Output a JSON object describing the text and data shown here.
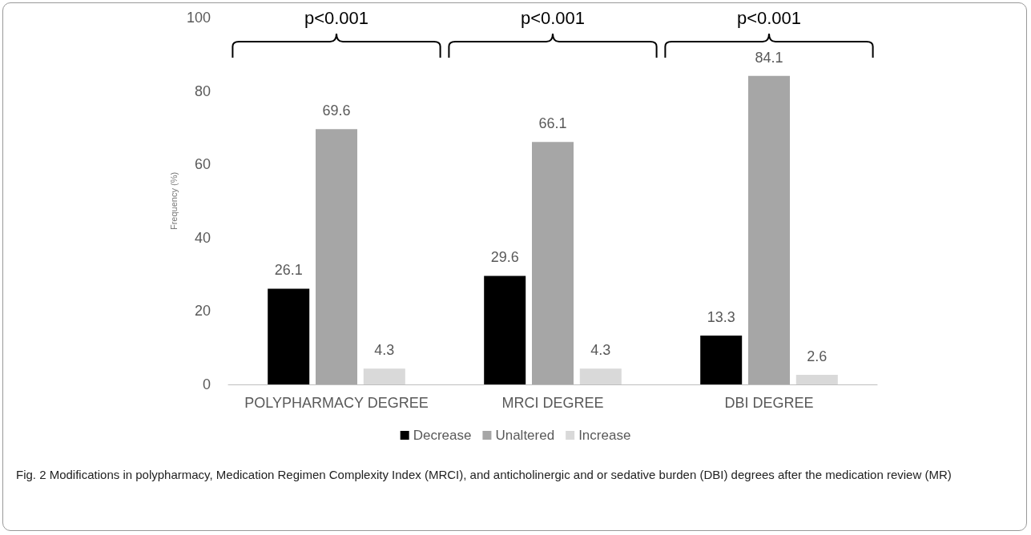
{
  "chart_data": {
    "type": "bar",
    "categories": [
      "POLYPHARMACY DEGREE",
      "MRCI DEGREE",
      "DBI DEGREE"
    ],
    "ylabel": "Frequency (%)",
    "series": [
      {
        "name": "Decrease",
        "color": "#000000",
        "values": [
          26.1,
          29.6,
          13.3
        ]
      },
      {
        "name": "Unaltered",
        "color": "#a6a6a6",
        "values": [
          69.6,
          66.1,
          84.1
        ]
      },
      {
        "name": "Increase",
        "color": "#d9d9d9",
        "values": [
          4.3,
          4.3,
          2.6
        ]
      }
    ],
    "ylim": [
      0,
      100
    ],
    "yticks": [
      0,
      20,
      40,
      60,
      80,
      100
    ],
    "grid": false,
    "legend": "bottom",
    "data_labels": true,
    "annotations": [
      "p<0.001",
      "p<0.001",
      "p<0.001",
      "Fig. 2 Modifications in polypharmacy, Medication Regimen Complexity Index (MRCI), and anticholinergic and or sedative burden (DBI) degrees after the medication review (MR)"
    ]
  }
}
